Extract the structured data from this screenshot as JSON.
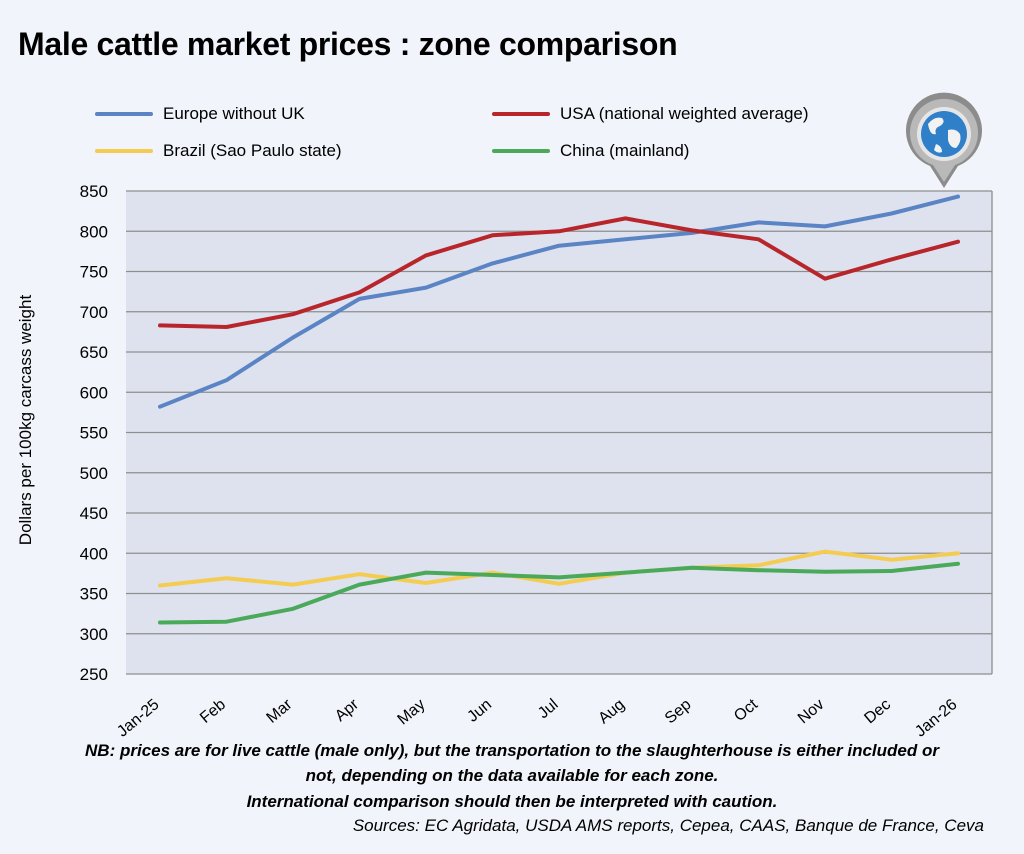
{
  "title": "Male cattle market prices : zone comparison",
  "colors": {
    "europe": "#5b84c4",
    "usa": "#b8262b",
    "brazil": "#f5cc52",
    "china": "#4aaa5a"
  },
  "chart_data": {
    "type": "line",
    "title": "Male cattle market prices : zone comparison",
    "xlabel": "",
    "ylabel": "Dollars per 100kg carcass weight",
    "categories": [
      "Jan-25",
      "Feb",
      "Mar",
      "Apr",
      "May",
      "Jun",
      "Jul",
      "Aug",
      "Sep",
      "Oct",
      "Nov",
      "Dec",
      "Jan-26"
    ],
    "ylim": [
      250,
      850
    ],
    "yticks": [
      250,
      300,
      350,
      400,
      450,
      500,
      550,
      600,
      650,
      700,
      750,
      800,
      850
    ],
    "grid": true,
    "legend_position": "top",
    "series": [
      {
        "name": "Europe without UK",
        "color_key": "europe",
        "values": [
          582,
          615,
          668,
          716,
          730,
          760,
          782,
          790,
          798,
          811,
          806,
          822,
          843
        ]
      },
      {
        "name": "USA (national weighted average)",
        "color_key": "usa",
        "values": [
          683,
          681,
          697,
          724,
          770,
          795,
          800,
          816,
          801,
          790,
          741,
          765,
          787
        ]
      },
      {
        "name": "Brazil (Sao Paulo state)",
        "color_key": "brazil",
        "values": [
          360,
          369,
          361,
          374,
          363,
          376,
          362,
          376,
          382,
          385,
          402,
          392,
          400
        ]
      },
      {
        "name": "China (mainland)",
        "color_key": "china",
        "values": [
          314,
          315,
          331,
          361,
          376,
          373,
          370,
          376,
          382,
          379,
          377,
          378,
          387
        ]
      }
    ]
  },
  "note": {
    "line1": "NB: prices are for live cattle (male only), but the transportation to the slaughterhouse is either included or",
    "line2": "not, depending on the data available for each zone.",
    "line3": "International comparison should then be interpreted with caution."
  },
  "sources": "Sources: EC Agridata, USDA AMS reports, Cepea, CAAS, Banque de France, Ceva",
  "icons": {
    "map_pin": "globe-map-pin-icon"
  }
}
